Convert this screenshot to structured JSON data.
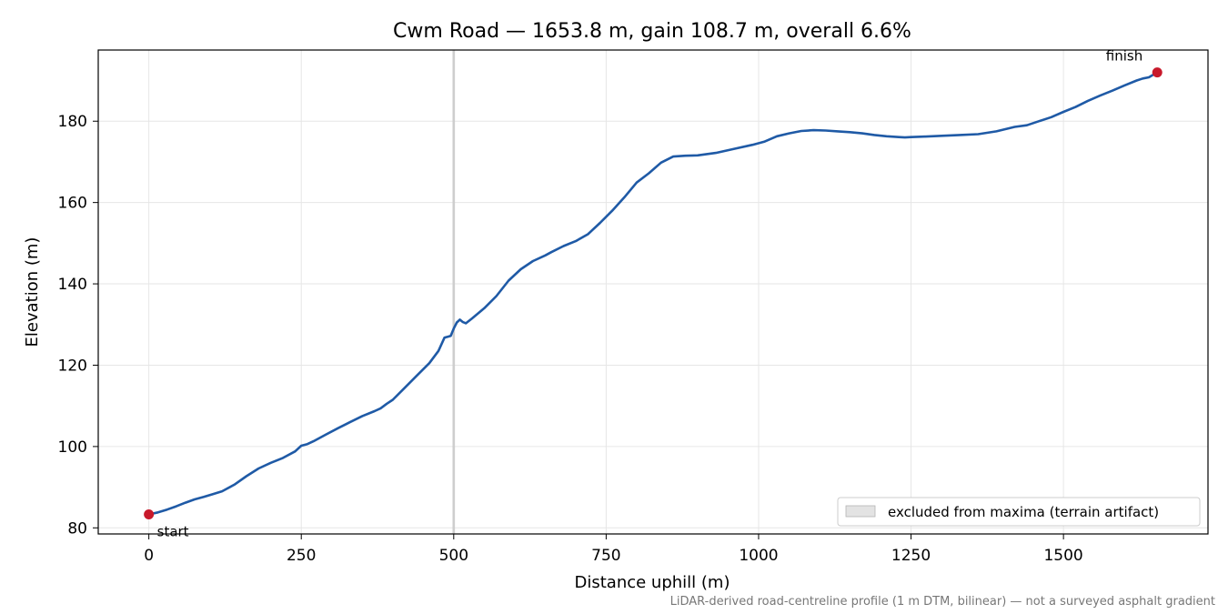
{
  "chart_data": {
    "type": "line",
    "title": "Cwm Road — 1653.8 m, gain 108.7 m, overall 6.6%",
    "xlabel": "Distance uphill (m)",
    "ylabel": "Elevation (m)",
    "xlim": [
      -83,
      1737
    ],
    "ylim": [
      78.5,
      197.5
    ],
    "x_ticks": [
      0,
      250,
      500,
      750,
      1000,
      1250,
      1500
    ],
    "y_ticks": [
      80,
      100,
      120,
      140,
      160,
      180
    ],
    "grid": true,
    "legend": {
      "placement": "lower-right",
      "label": "excluded from maxima (terrain artifact)"
    },
    "excluded_band": {
      "x_start": 498,
      "x_end": 502
    },
    "footnote": "LiDAR-derived road-centreline profile (1 m DTM, bilinear) — not a surveyed asphalt gradient",
    "colors": {
      "line": "#1f5aa6",
      "markers": "#c8192b",
      "band": "#c8c8c8",
      "grid": "#e6e6e6"
    },
    "markers": [
      {
        "label": "start",
        "x": 0,
        "y": 83.3
      },
      {
        "label": "finish",
        "x": 1653.8,
        "y": 192.0
      }
    ],
    "series": [
      {
        "x": [
          0,
          15,
          30,
          45,
          60,
          75,
          90,
          105,
          120,
          140,
          160,
          180,
          200,
          220,
          240,
          250,
          260,
          270,
          290,
          310,
          330,
          350,
          370,
          380,
          390,
          400,
          420,
          440,
          460,
          475,
          485,
          490,
          495,
          500,
          505,
          510,
          515,
          520,
          530,
          550,
          570,
          590,
          610,
          630,
          650,
          660,
          680,
          700,
          720,
          740,
          760,
          780,
          800,
          820,
          840,
          860,
          880,
          900,
          930,
          960,
          990,
          1010,
          1030,
          1050,
          1070,
          1090,
          1110,
          1130,
          1150,
          1170,
          1190,
          1210,
          1230,
          1240,
          1250,
          1270,
          1300,
          1330,
          1360,
          1390,
          1420,
          1440,
          1460,
          1480,
          1500,
          1520,
          1540,
          1560,
          1580,
          1600,
          1620,
          1630,
          1640,
          1653.8
        ],
        "y": [
          83.3,
          83.8,
          84.5,
          85.3,
          86.2,
          87.0,
          87.6,
          88.3,
          89.0,
          90.6,
          92.7,
          94.6,
          96.0,
          97.2,
          98.8,
          100.2,
          100.6,
          101.3,
          102.9,
          104.5,
          106.0,
          107.5,
          108.7,
          109.4,
          110.5,
          111.5,
          114.5,
          117.5,
          120.5,
          123.5,
          126.8,
          127.0,
          127.2,
          129.0,
          130.5,
          131.2,
          130.6,
          130.3,
          131.5,
          134.0,
          137.0,
          140.8,
          143.6,
          145.6,
          147.0,
          147.8,
          149.3,
          150.5,
          152.2,
          155.0,
          158.0,
          161.3,
          164.9,
          167.2,
          169.8,
          171.3,
          171.5,
          171.6,
          172.2,
          173.2,
          174.2,
          175.0,
          176.3,
          177.0,
          177.6,
          177.8,
          177.7,
          177.5,
          177.3,
          177.0,
          176.6,
          176.3,
          176.1,
          176.0,
          176.1,
          176.2,
          176.4,
          176.6,
          176.8,
          177.5,
          178.6,
          179.0,
          180.0,
          181.0,
          182.3,
          183.5,
          185.0,
          186.3,
          187.5,
          188.8,
          190.0,
          190.5,
          190.8,
          192.0
        ]
      }
    ]
  }
}
